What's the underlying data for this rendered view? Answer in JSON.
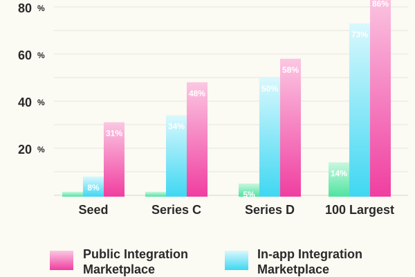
{
  "chart_data": {
    "type": "bar",
    "title": "",
    "xlabel": "",
    "ylabel": "",
    "ylim": [
      0,
      82
    ],
    "y_ticks": [
      {
        "value": 20,
        "label": "20",
        "unit": "%"
      },
      {
        "value": 40,
        "label": "40",
        "unit": "%"
      },
      {
        "value": 60,
        "label": "60",
        "unit": "%"
      },
      {
        "value": 80,
        "label": "80",
        "unit": "%"
      }
    ],
    "grid": true,
    "categories": [
      "Seed",
      "Series C",
      "Series D",
      "100 Largest"
    ],
    "series": [
      {
        "name": "",
        "color": "#4fe3a0",
        "values": [
          1.5,
          1.5,
          5,
          14
        ],
        "labels": [
          "",
          "",
          "5%",
          "14%"
        ]
      },
      {
        "name": "In-app Integration Marketplace",
        "color": "#3fd7f2",
        "values": [
          8,
          34,
          50,
          73
        ],
        "labels": [
          "8%",
          "34%",
          "50%",
          "73%"
        ]
      },
      {
        "name": "Public Integration Marketplace",
        "color": "#f03ea0",
        "values": [
          31,
          48,
          58,
          86
        ],
        "labels": [
          "31%",
          "48%",
          "58%",
          "86%"
        ]
      }
    ],
    "legend": {
      "placement": "bottom",
      "entries": [
        {
          "lines": [
            "Public Integration",
            "Marketplace"
          ],
          "series": 2
        },
        {
          "lines": [
            "In-app Integration",
            "Marketplace"
          ],
          "series": 1
        }
      ]
    }
  }
}
